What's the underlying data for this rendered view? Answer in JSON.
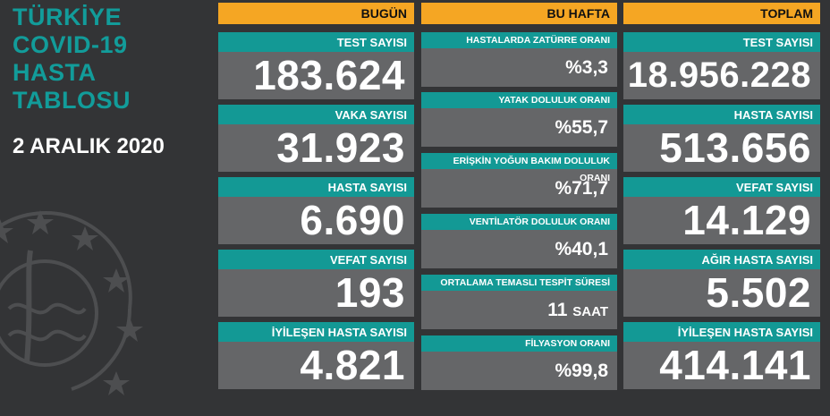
{
  "title": [
    "TÜRKİYE",
    "COVID-19",
    "HASTA",
    "TABLOSU"
  ],
  "date": "2 ARALIK 2020",
  "colors": {
    "orange": "#f5a623",
    "teal": "#139995",
    "panel": "#656668",
    "background": "#333436"
  },
  "emblem": "ministry-of-health-emblem-icon",
  "today": {
    "header": "BUGÜN",
    "items": [
      {
        "label": "TEST SAYISI",
        "value": "183.624"
      },
      {
        "label": "VAKA SAYISI",
        "value": "31.923"
      },
      {
        "label": "HASTA SAYISI",
        "value": "6.690"
      },
      {
        "label": "VEFAT SAYISI",
        "value": "193"
      },
      {
        "label": "İYİLEŞEN HASTA SAYISI",
        "value": "4.821"
      }
    ]
  },
  "this_week": {
    "header": "BU HAFTA",
    "items": [
      {
        "label": "HASTALARDA ZATÜRRE ORANI",
        "value": "%3,3"
      },
      {
        "label": "YATAK DOLULUK ORANI",
        "value": "%55,7"
      },
      {
        "label": "ERİŞKİN YOĞUN BAKIM DOLULUK ORANI",
        "value": "%71,7"
      },
      {
        "label": "VENTİLATÖR DOLULUK ORANI",
        "value": "%40,1"
      },
      {
        "label": "ORTALAMA TEMASLI TESPİT SÜRESİ",
        "value": "11",
        "unit": "SAAT"
      },
      {
        "label": "FİLYASYON ORANI",
        "value": "%99,8"
      }
    ]
  },
  "total": {
    "header": "TOPLAM",
    "items": [
      {
        "label": "TEST SAYISI",
        "value": "18.956.228"
      },
      {
        "label": "HASTA SAYISI",
        "value": "513.656"
      },
      {
        "label": "VEFAT SAYISI",
        "value": "14.129"
      },
      {
        "label": "AĞIR HASTA SAYISI",
        "value": "5.502"
      },
      {
        "label": "İYİLEŞEN HASTA SAYISI",
        "value": "414.141"
      }
    ]
  }
}
